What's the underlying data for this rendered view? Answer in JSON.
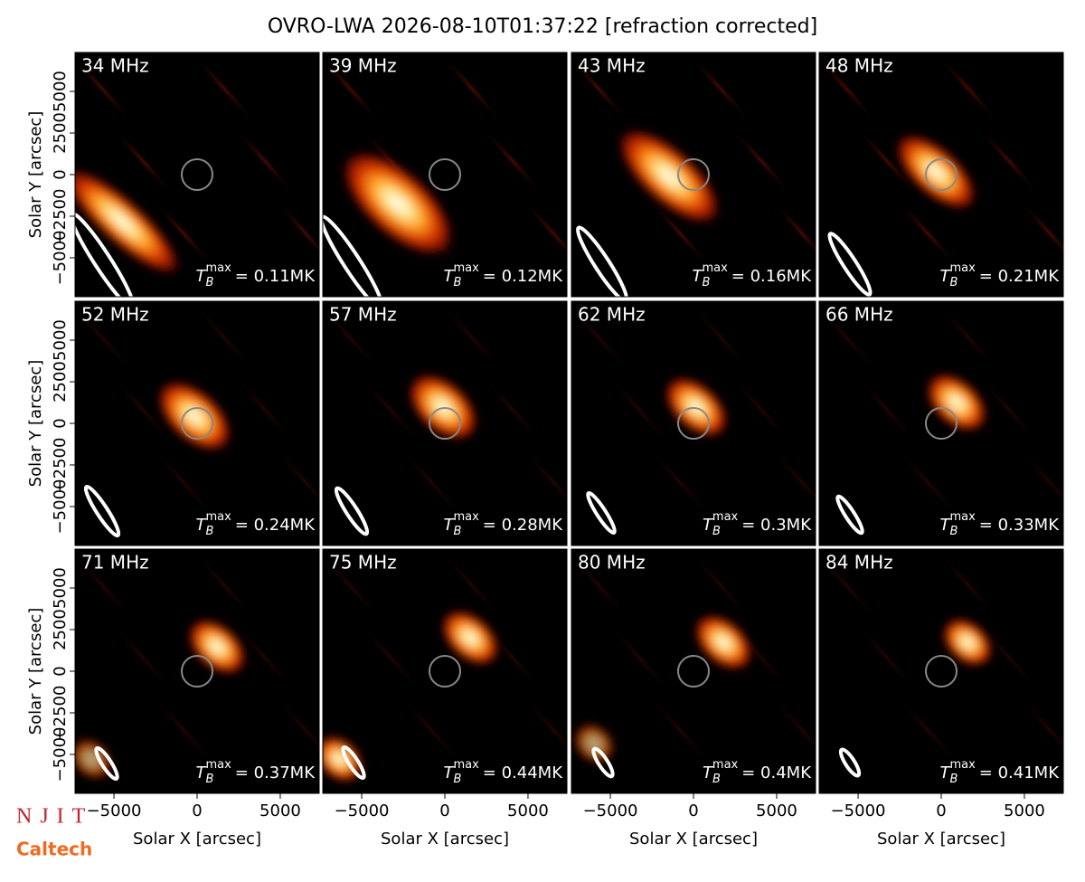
{
  "title": "OVRO-LWA 2026-08-10T01:37:22 [refraction corrected]",
  "axes": {
    "xlabel": "Solar X [arcsec]",
    "ylabel": "Solar Y [arcsec]",
    "xlim": [
      -7340,
      7340
    ],
    "ylim": [
      -7340,
      7340
    ],
    "xticks": [
      {
        "value": -5000,
        "label": "−5000"
      },
      0,
      5000
    ],
    "yticks": [
      {
        "value": -5000,
        "label": "−5000"
      },
      {
        "value": -2500,
        "label": "−2500"
      },
      0,
      2500,
      5000
    ]
  },
  "tb": {
    "symbol": "T",
    "sub": "B",
    "sup": "max"
  },
  "panels": [
    {
      "label": "34 MHz",
      "tmax": "= 0.11MK"
    },
    {
      "label": "39 MHz",
      "tmax": "= 0.12MK"
    },
    {
      "label": "43 MHz",
      "tmax": "= 0.16MK"
    },
    {
      "label": "48 MHz",
      "tmax": "= 0.21MK"
    },
    {
      "label": "52 MHz",
      "tmax": "= 0.24MK"
    },
    {
      "label": "57 MHz",
      "tmax": "= 0.28MK"
    },
    {
      "label": "62 MHz",
      "tmax": "= 0.3MK"
    },
    {
      "label": "66 MHz",
      "tmax": "= 0.33MK"
    },
    {
      "label": "71 MHz",
      "tmax": "= 0.37MK"
    },
    {
      "label": "75 MHz",
      "tmax": "= 0.44MK"
    },
    {
      "label": "80 MHz",
      "tmax": "= 0.4MK"
    },
    {
      "label": "84 MHz",
      "tmax": "= 0.41MK"
    }
  ],
  "logos": {
    "njit": "NJIT",
    "caltech": "Caltech"
  }
}
